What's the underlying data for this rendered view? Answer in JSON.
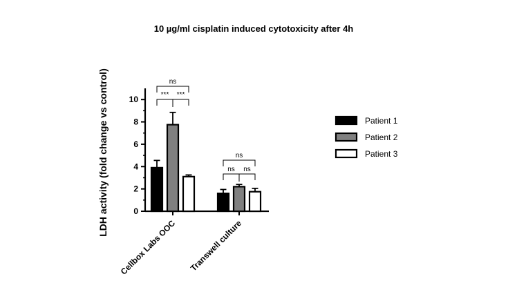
{
  "chart_data": {
    "type": "bar",
    "title": "10 µg/ml cisplatin induced cytotoxicity after 4h",
    "xlabel": "",
    "ylabel": "LDH activity (fold change vs control)",
    "categories": [
      "Cellbox Labs OOC",
      "Transwell culture"
    ],
    "series": [
      {
        "name": "Patient 1",
        "values": [
          3.9,
          1.6
        ],
        "errors": [
          0.65,
          0.35
        ],
        "color": "#000000",
        "fill": "#000000"
      },
      {
        "name": "Patient 2",
        "values": [
          7.75,
          2.2
        ],
        "errors": [
          1.1,
          0.2
        ],
        "color": "#000000",
        "fill": "#808080"
      },
      {
        "name": "Patient 3",
        "values": [
          3.1,
          1.75
        ],
        "errors": [
          0.15,
          0.3
        ],
        "color": "#000000",
        "fill": "#ffffff"
      }
    ],
    "ylim": [
      0,
      11
    ],
    "yticks": [
      0,
      2,
      4,
      6,
      8,
      10
    ],
    "legend_position": "right",
    "grid": false,
    "annotations": [
      {
        "category_index": 0,
        "from_series": 0,
        "to_series": 2,
        "label": "ns",
        "level": 2
      },
      {
        "category_index": 0,
        "from_series": 0,
        "to_series": 1,
        "label": "***",
        "level": 1
      },
      {
        "category_index": 0,
        "from_series": 1,
        "to_series": 2,
        "label": "***",
        "level": 1
      },
      {
        "category_index": 1,
        "from_series": 0,
        "to_series": 2,
        "label": "ns",
        "level": 2
      },
      {
        "category_index": 1,
        "from_series": 0,
        "to_series": 1,
        "label": "ns",
        "level": 1
      },
      {
        "category_index": 1,
        "from_series": 1,
        "to_series": 2,
        "label": "ns",
        "level": 1
      }
    ]
  }
}
